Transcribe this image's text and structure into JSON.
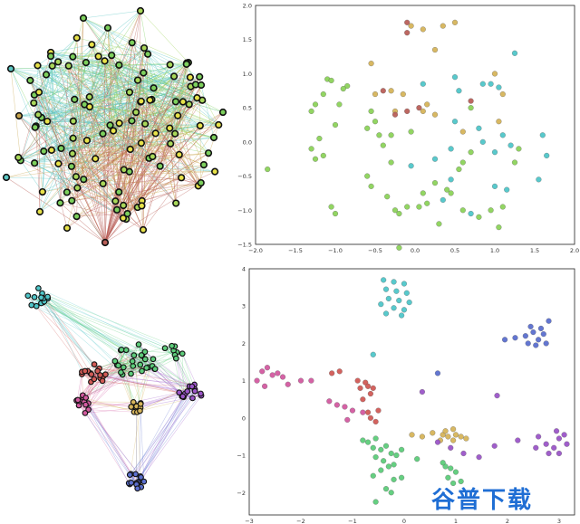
{
  "colors": {
    "network_edges": [
      "#7ccf5c",
      "#9fd45a",
      "#5cc7c4",
      "#c9a54c",
      "#b95f58",
      "#c07ad0",
      "#b8d15e"
    ],
    "cluster_cyan": "#4fc6c9",
    "cluster_green": "#5dcc7a",
    "cluster_red": "#d15a55",
    "cluster_pink": "#d35aa0",
    "cluster_yellow": "#d6b45a",
    "cluster_purple": "#9b55c8",
    "cluster_blue": "#5b6fcf",
    "cluster_lime": "#8cd35a"
  },
  "watermark": "谷普下载",
  "chart_data": [
    {
      "type": "scatter",
      "panel": "top-right",
      "xlim": [
        -2.0,
        2.0
      ],
      "ylim": [
        -1.5,
        2.0
      ],
      "xticks": [
        "−2.0",
        "−1.5",
        "−1.0",
        "−0.5",
        "0.0",
        "0.5",
        "1.0",
        "1.5",
        "2.0"
      ],
      "yticks": [
        "2.0",
        "1.5",
        "1.0",
        "0.5",
        "0.0",
        "−0.5",
        "−1.0",
        "−1.5"
      ],
      "grid": false,
      "series": [
        {
          "color": "#8cd35a",
          "points": [
            [
              -1.85,
              -0.4
            ],
            [
              -1.1,
              0.92
            ],
            [
              -1.05,
              0.9
            ],
            [
              -0.85,
              0.82
            ],
            [
              -0.9,
              0.78
            ],
            [
              -1.15,
              0.7
            ],
            [
              -0.95,
              0.55
            ],
            [
              -1.25,
              0.55
            ],
            [
              -1.3,
              0.45
            ],
            [
              -1.0,
              0.25
            ],
            [
              -1.2,
              0.05
            ],
            [
              -1.3,
              -0.1
            ],
            [
              -1.15,
              -0.2
            ],
            [
              -1.25,
              -0.25
            ],
            [
              -0.6,
              0.2
            ],
            [
              -0.55,
              0.45
            ],
            [
              -0.5,
              0.3
            ],
            [
              -0.45,
              0.1
            ],
            [
              -0.3,
              0.1
            ],
            [
              -0.05,
              0.15
            ],
            [
              -0.4,
              -0.05
            ],
            [
              -0.6,
              -0.5
            ],
            [
              -0.3,
              -0.3
            ],
            [
              -0.55,
              -0.65
            ],
            [
              -0.35,
              -0.8
            ],
            [
              -0.25,
              -1.0
            ],
            [
              -0.2,
              -1.05
            ],
            [
              -0.1,
              -0.95
            ],
            [
              0.05,
              -0.95
            ],
            [
              0.1,
              -0.75
            ],
            [
              0.15,
              -0.9
            ],
            [
              0.25,
              -0.6
            ],
            [
              0.4,
              -0.7
            ],
            [
              0.45,
              -0.75
            ],
            [
              0.55,
              -0.4
            ],
            [
              0.6,
              -0.3
            ],
            [
              0.7,
              -0.15
            ],
            [
              0.3,
              -1.2
            ],
            [
              0.6,
              -1.0
            ],
            [
              0.8,
              -1.1
            ],
            [
              1.05,
              -1.25
            ],
            [
              0.95,
              -1.0
            ],
            [
              1.1,
              -0.95
            ],
            [
              -0.2,
              -1.55
            ],
            [
              -1.0,
              -1.05
            ],
            [
              -1.05,
              -0.95
            ],
            [
              0.7,
              0.5
            ],
            [
              1.3,
              -0.1
            ],
            [
              1.25,
              -0.3
            ]
          ]
        },
        {
          "color": "#4fc6c9",
          "points": [
            [
              0.1,
              0.85
            ],
            [
              0.5,
              0.95
            ],
            [
              0.55,
              0.75
            ],
            [
              0.85,
              0.85
            ],
            [
              0.95,
              0.85
            ],
            [
              1.05,
              0.8
            ],
            [
              1.25,
              1.3
            ],
            [
              0.5,
              0.3
            ],
            [
              0.8,
              0.2
            ],
            [
              0.85,
              0.0
            ],
            [
              1.0,
              -0.15
            ],
            [
              1.1,
              0.1
            ],
            [
              1.2,
              -0.05
            ],
            [
              1.6,
              0.1
            ],
            [
              1.65,
              -0.2
            ],
            [
              1.55,
              -0.55
            ],
            [
              1.0,
              -0.65
            ],
            [
              1.15,
              -0.7
            ],
            [
              0.7,
              -1.05
            ],
            [
              0.35,
              -0.85
            ],
            [
              0.45,
              -0.55
            ],
            [
              -0.05,
              -0.35
            ],
            [
              0.25,
              -0.25
            ],
            [
              0.45,
              -0.1
            ]
          ]
        },
        {
          "color": "#d6b45a",
          "points": [
            [
              -0.05,
              1.7
            ],
            [
              0.1,
              1.65
            ],
            [
              0.35,
              1.7
            ],
            [
              0.5,
              1.75
            ],
            [
              0.25,
              1.35
            ],
            [
              -0.55,
              1.15
            ],
            [
              -0.3,
              0.75
            ],
            [
              -0.15,
              0.7
            ],
            [
              -0.5,
              0.7
            ],
            [
              0.15,
              0.55
            ],
            [
              0.25,
              0.4
            ],
            [
              0.1,
              0.45
            ],
            [
              1.0,
              1.0
            ],
            [
              1.1,
              0.7
            ],
            [
              1.05,
              0.3
            ],
            [
              0.6,
              0.15
            ],
            [
              -0.25,
              0.45
            ]
          ]
        },
        {
          "color": "#b95f58",
          "points": [
            [
              -0.1,
              1.75
            ],
            [
              -0.1,
              1.6
            ],
            [
              -0.4,
              0.75
            ],
            [
              -0.25,
              0.4
            ],
            [
              -0.1,
              0.45
            ],
            [
              0.05,
              0.5
            ],
            [
              0.7,
              0.6
            ]
          ]
        }
      ]
    },
    {
      "type": "scatter",
      "panel": "bottom-right",
      "xlim": [
        -3,
        3.3
      ],
      "ylim": [
        -2.6,
        4.0
      ],
      "xticks": [
        "−3",
        "−2",
        "−1",
        "0",
        "1",
        "2",
        "3"
      ],
      "yticks": [
        "4",
        "3",
        "2",
        "1",
        "0",
        "−1",
        "−2"
      ],
      "grid": false,
      "series": [
        {
          "color": "#4fc6c9",
          "points": [
            [
              -0.4,
              3.7
            ],
            [
              -0.2,
              3.65
            ],
            [
              0.0,
              3.6
            ],
            [
              -0.35,
              3.45
            ],
            [
              -0.15,
              3.4
            ],
            [
              0.05,
              3.35
            ],
            [
              -0.3,
              3.2
            ],
            [
              -0.1,
              3.15
            ],
            [
              0.1,
              3.1
            ],
            [
              -0.45,
              3.05
            ],
            [
              -0.2,
              2.95
            ],
            [
              0.0,
              2.9
            ],
            [
              -0.35,
              2.8
            ],
            [
              -0.05,
              2.75
            ],
            [
              -0.6,
              1.7
            ]
          ]
        },
        {
          "color": "#5b6fcf",
          "points": [
            [
              1.95,
              2.1
            ],
            [
              2.15,
              2.15
            ],
            [
              2.35,
              2.2
            ],
            [
              2.5,
              2.3
            ],
            [
              2.65,
              2.4
            ],
            [
              2.8,
              2.6
            ],
            [
              2.4,
              2.0
            ],
            [
              2.6,
              2.1
            ],
            [
              2.7,
              2.25
            ],
            [
              2.55,
              1.95
            ],
            [
              2.75,
              2.0
            ],
            [
              2.45,
              2.45
            ],
            [
              0.65,
              1.2
            ]
          ]
        },
        {
          "color": "#d35aa0",
          "points": [
            [
              -2.85,
              1.0
            ],
            [
              -2.75,
              1.25
            ],
            [
              -2.65,
              1.35
            ],
            [
              -2.55,
              1.15
            ],
            [
              -2.45,
              1.2
            ],
            [
              -2.7,
              0.85
            ],
            [
              -2.35,
              1.1
            ],
            [
              -2.25,
              0.9
            ],
            [
              -2.0,
              1.0
            ],
            [
              -1.8,
              1.0
            ],
            [
              -1.45,
              0.45
            ],
            [
              -1.3,
              0.35
            ],
            [
              -1.15,
              0.3
            ],
            [
              -1.0,
              0.2
            ],
            [
              -0.8,
              0.15
            ],
            [
              -1.1,
              -0.05
            ]
          ]
        },
        {
          "color": "#d15a55",
          "points": [
            [
              -1.4,
              1.2
            ],
            [
              -1.25,
              1.25
            ],
            [
              -0.9,
              1.0
            ],
            [
              -0.75,
              0.95
            ],
            [
              -0.7,
              0.85
            ],
            [
              -0.85,
              0.8
            ],
            [
              -0.6,
              0.8
            ],
            [
              -0.65,
              0.65
            ],
            [
              -0.8,
              0.5
            ],
            [
              -0.7,
              0.15
            ],
            [
              -0.65,
              0.0
            ],
            [
              -0.55,
              -0.1
            ],
            [
              -0.5,
              0.2
            ]
          ]
        },
        {
          "color": "#5dcc7a",
          "points": [
            [
              -0.8,
              -0.6
            ],
            [
              -0.7,
              -0.65
            ],
            [
              -0.55,
              -0.55
            ],
            [
              -0.6,
              -0.8
            ],
            [
              -0.45,
              -0.85
            ],
            [
              -0.35,
              -0.75
            ],
            [
              -0.25,
              -0.95
            ],
            [
              -0.15,
              -1.0
            ],
            [
              -0.05,
              -0.85
            ],
            [
              -0.55,
              -1.05
            ],
            [
              -0.4,
              -1.15
            ],
            [
              -0.3,
              -1.3
            ],
            [
              -0.2,
              -1.25
            ],
            [
              -0.45,
              -1.4
            ],
            [
              0.25,
              -1.1
            ],
            [
              -0.05,
              -1.6
            ],
            [
              -0.2,
              -1.65
            ],
            [
              -0.35,
              -1.9
            ],
            [
              -0.25,
              -2.0
            ],
            [
              -0.6,
              -1.55
            ],
            [
              -0.55,
              -2.25
            ],
            [
              0.8,
              -1.3
            ],
            [
              0.9,
              -1.35
            ],
            [
              1.0,
              -1.45
            ],
            [
              1.1,
              -1.7
            ],
            [
              0.95,
              -1.75
            ],
            [
              0.85,
              -1.6
            ],
            [
              0.75,
              -1.2
            ]
          ]
        },
        {
          "color": "#d6b45a",
          "points": [
            [
              0.15,
              -0.45
            ],
            [
              0.35,
              -0.5
            ],
            [
              0.55,
              -0.4
            ],
            [
              0.75,
              -0.45
            ],
            [
              0.85,
              -0.5
            ],
            [
              0.95,
              -0.6
            ],
            [
              1.1,
              -0.5
            ],
            [
              1.2,
              -0.55
            ],
            [
              0.8,
              -0.35
            ],
            [
              0.95,
              -0.3
            ],
            [
              1.0,
              -0.45
            ],
            [
              0.7,
              -0.6
            ]
          ]
        },
        {
          "color": "#9b55c8",
          "points": [
            [
              0.35,
              0.7
            ],
            [
              0.65,
              -0.65
            ],
            [
              0.9,
              -0.8
            ],
            [
              1.15,
              -0.95
            ],
            [
              1.45,
              -1.05
            ],
            [
              1.75,
              -0.75
            ],
            [
              2.2,
              -0.6
            ],
            [
              2.55,
              -0.8
            ],
            [
              2.75,
              -0.7
            ],
            [
              2.9,
              -0.8
            ],
            [
              3.0,
              -0.55
            ],
            [
              3.1,
              -0.45
            ],
            [
              3.15,
              -0.7
            ],
            [
              2.8,
              -0.95
            ],
            [
              3.0,
              -0.95
            ],
            [
              2.95,
              -0.35
            ],
            [
              2.6,
              -0.5
            ],
            [
              1.8,
              0.6
            ]
          ]
        }
      ]
    }
  ]
}
